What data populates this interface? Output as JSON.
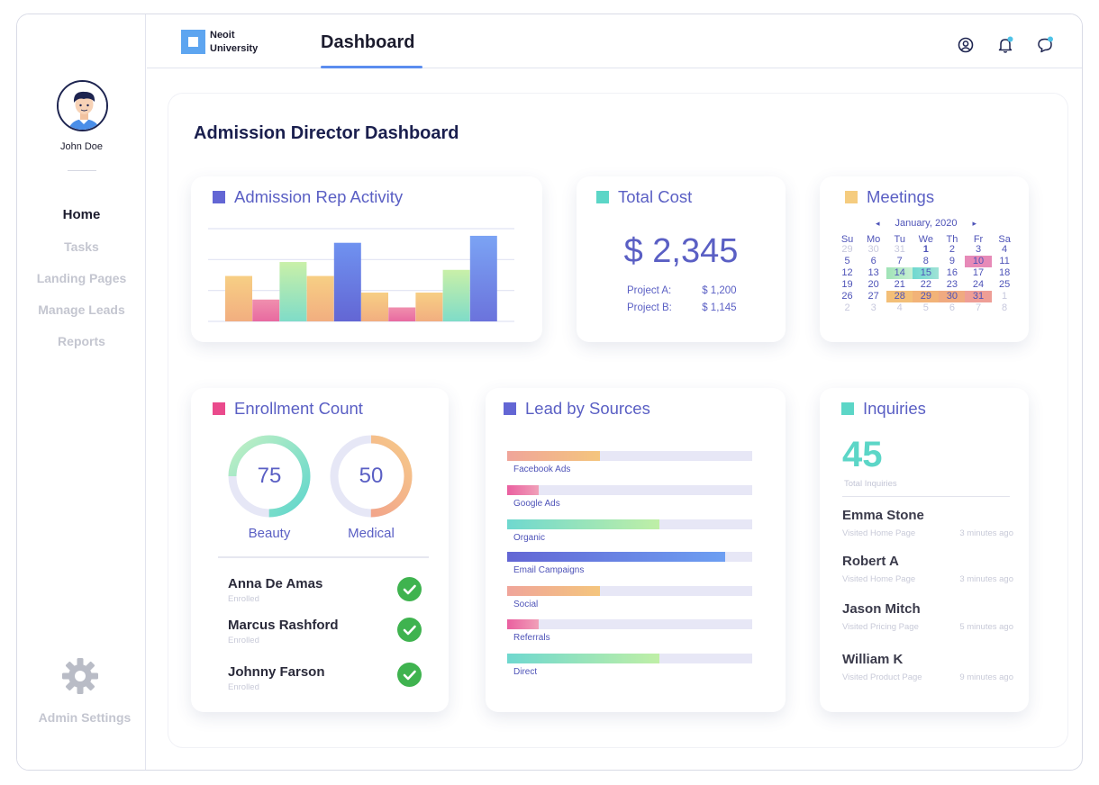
{
  "user": {
    "name": "John Doe"
  },
  "nav": {
    "items": [
      "Home",
      "Tasks",
      "Landing Pages",
      "Manage Leads",
      "Reports"
    ],
    "active": "Home"
  },
  "settings_label": "Admin Settings",
  "header": {
    "logo_line1": "Neoit",
    "logo_line2": "University",
    "tab": "Dashboard"
  },
  "page_title": "Admission Director Dashboard",
  "activity": {
    "title": "Admission Rep Activity",
    "chart_data": {
      "type": "bar",
      "values": [
        52,
        25,
        68,
        52,
        90,
        33,
        16,
        33,
        59,
        98
      ],
      "colors": [
        "#f5b97a",
        "#ee86a8",
        "#a8ecc4",
        "#f5b97a",
        "#6d72e0",
        "#f5b97a",
        "#ee86a8",
        "#f5b97a",
        "#9fe8c2",
        "#6d8ff0"
      ],
      "ylim": [
        0,
        100
      ],
      "grid": true
    }
  },
  "cost": {
    "title": "Total Cost",
    "amount": "$ 2,345",
    "rows": [
      {
        "label": "Project A:",
        "value": "$ 1,200"
      },
      {
        "label": "Project B:",
        "value": "$ 1,145"
      }
    ]
  },
  "meetings": {
    "title": "Meetings",
    "month": "January, 2020",
    "prev": "◂",
    "next": "▸",
    "dow": [
      "Su",
      "Mo",
      "Tu",
      "We",
      "Th",
      "Fr",
      "Sa"
    ],
    "days": [
      "29",
      "30",
      "31",
      "1",
      "2",
      "3",
      "4",
      "5",
      "6",
      "7",
      "8",
      "9",
      "10",
      "11",
      "12",
      "13",
      "14",
      "15",
      "16",
      "17",
      "18",
      "19",
      "20",
      "21",
      "22",
      "23",
      "24",
      "25",
      "26",
      "27",
      "28",
      "29",
      "30",
      "31",
      "1",
      "2",
      "3",
      "4",
      "5",
      "6",
      "7",
      "8"
    ]
  },
  "enrollment": {
    "title": "Enrollment Count",
    "donuts": [
      {
        "value": "75",
        "label": "Beauty",
        "fraction": 0.75
      },
      {
        "value": "50",
        "label": "Medical",
        "fraction": 0.5
      }
    ],
    "people": [
      {
        "name": "Anna De Amas",
        "status": "Enrolled"
      },
      {
        "name": "Marcus Rashford",
        "status": "Enrolled"
      },
      {
        "name": "Johnny Farson",
        "status": "Enrolled"
      }
    ]
  },
  "leads": {
    "title": "Lead by Sources",
    "items": [
      {
        "label": "Facebook Ads",
        "fraction": 0.38
      },
      {
        "label": "Google Ads",
        "fraction": 0.13
      },
      {
        "label": "Organic",
        "fraction": 0.62
      },
      {
        "label": "Email Campaigns",
        "fraction": 0.89
      },
      {
        "label": "Social",
        "fraction": 0.38
      },
      {
        "label": "Referrals",
        "fraction": 0.13
      },
      {
        "label": "Direct",
        "fraction": 0.62
      }
    ]
  },
  "inquiries": {
    "title": "Inquiries",
    "count": "45",
    "count_label": "Total Inquiries",
    "items": [
      {
        "name": "Emma Stone",
        "action": "Visited Home Page",
        "time": "3 minutes ago"
      },
      {
        "name": "Robert A",
        "action": "Visited Home Page",
        "time": "3 minutes ago"
      },
      {
        "name": "Jason Mitch",
        "action": "Visited Pricing Page",
        "time": "5 minutes ago"
      },
      {
        "name": "William K",
        "action": "Visited Product Page",
        "time": "9 minutes ago"
      }
    ]
  }
}
